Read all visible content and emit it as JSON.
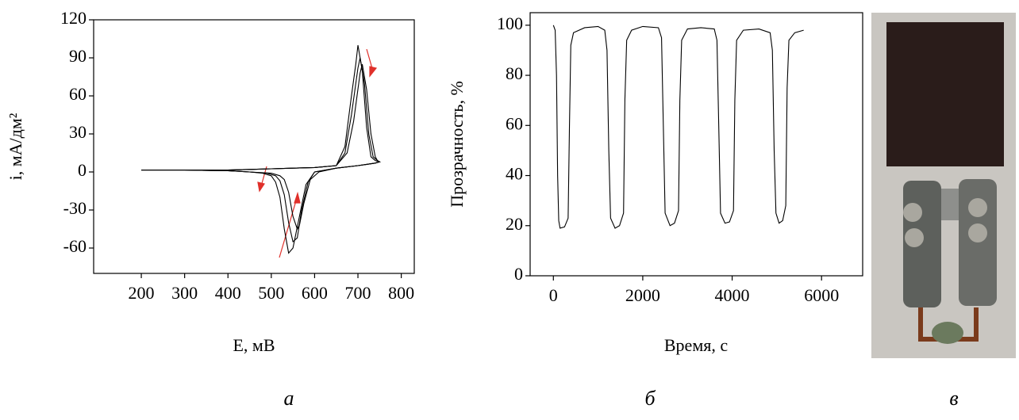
{
  "chart_data": [
    {
      "type": "line",
      "panel_label": "а",
      "xlabel": "E, мВ",
      "ylabel": "i, мА/дм²",
      "xlim": [
        90,
        830
      ],
      "ylim": [
        -80,
        120
      ],
      "xticks": [
        200,
        300,
        400,
        500,
        600,
        700,
        800
      ],
      "yticks": [
        -60,
        -30,
        0,
        30,
        60,
        90,
        120
      ],
      "series": [
        {
          "color": "#000000",
          "x": [
            200,
            300,
            400,
            450,
            500,
            550,
            600,
            650,
            670,
            685,
            695,
            700,
            710,
            720,
            730,
            740,
            750,
            740,
            720,
            700,
            650,
            600,
            580,
            565,
            550,
            540,
            530,
            520,
            510,
            500,
            480,
            450,
            400,
            300,
            200
          ],
          "values": [
            1.5,
            1.5,
            1.5,
            2,
            2.5,
            3,
            3.5,
            5,
            20,
            60,
            85,
            100,
            80,
            35,
            12,
            9,
            8,
            7,
            6,
            5,
            3,
            0,
            -10,
            -35,
            -60,
            -64,
            -45,
            -20,
            -8,
            -3,
            -1,
            0,
            1,
            1.5,
            1.5
          ]
        },
        {
          "color": "#000000",
          "x": [
            200,
            300,
            400,
            450,
            500,
            550,
            600,
            650,
            670,
            685,
            700,
            705,
            715,
            725,
            735,
            745,
            750,
            740,
            720,
            700,
            650,
            600,
            585,
            570,
            560,
            550,
            540,
            530,
            520,
            510,
            490,
            450,
            400,
            300,
            200
          ],
          "values": [
            1.5,
            1.5,
            1.5,
            2,
            2.5,
            3,
            3.5,
            5,
            15,
            45,
            82,
            90,
            70,
            30,
            12,
            9,
            8,
            7,
            6,
            5,
            3,
            0,
            -8,
            -30,
            -52,
            -55,
            -40,
            -18,
            -7,
            -3,
            -1,
            0,
            1,
            1.5,
            1.5
          ]
        },
        {
          "color": "#000000",
          "x": [
            200,
            300,
            400,
            450,
            500,
            550,
            600,
            650,
            675,
            690,
            705,
            710,
            720,
            730,
            740,
            745,
            750,
            740,
            720,
            700,
            650,
            610,
            590,
            575,
            565,
            560,
            550,
            540,
            530,
            520,
            500,
            450,
            400,
            300,
            200
          ],
          "values": [
            1.5,
            1.5,
            1.5,
            2,
            2.5,
            3,
            3.5,
            5,
            15,
            40,
            78,
            85,
            65,
            30,
            12,
            9,
            8,
            7,
            6,
            5,
            3,
            0,
            -6,
            -25,
            -42,
            -45,
            -35,
            -16,
            -6,
            -3,
            -1,
            0,
            1,
            1.5,
            1.5
          ]
        }
      ]
    },
    {
      "type": "line",
      "panel_label": "б",
      "xlabel": "Время, с",
      "ylabel": "Прозрачность, %",
      "xlim": [
        -520,
        6920
      ],
      "ylim": [
        0,
        105
      ],
      "xticks": [
        0,
        2000,
        4000,
        6000
      ],
      "yticks": [
        0,
        20,
        40,
        60,
        80,
        100
      ],
      "series": [
        {
          "color": "#000000",
          "x": [
            0,
            40,
            70,
            95,
            120,
            150,
            250,
            330,
            360,
            390,
            450,
            700,
            1000,
            1150,
            1200,
            1240,
            1280,
            1380,
            1480,
            1570,
            1600,
            1640,
            1750,
            2000,
            2350,
            2420,
            2460,
            2500,
            2610,
            2710,
            2800,
            2830,
            2870,
            3000,
            3300,
            3600,
            3660,
            3700,
            3740,
            3840,
            3940,
            4030,
            4060,
            4100,
            4250,
            4600,
            4850,
            4900,
            4940,
            4980,
            5050,
            5130,
            5200,
            5230,
            5270,
            5400,
            5600
          ],
          "values": [
            100,
            98,
            80,
            40,
            22,
            19,
            19.5,
            23,
            60,
            92,
            97,
            99,
            99.5,
            98,
            90,
            50,
            23,
            19,
            20,
            25,
            70,
            94,
            98,
            99.5,
            99,
            95,
            60,
            25,
            20,
            21,
            26,
            70,
            94,
            98.5,
            99,
            98.5,
            94,
            60,
            25,
            21,
            21.5,
            26,
            70,
            94,
            98,
            98.5,
            97,
            90,
            50,
            25,
            21,
            22,
            28,
            75,
            94,
            97,
            98
          ]
        }
      ]
    }
  ],
  "photo": {
    "panel_label": "в"
  }
}
